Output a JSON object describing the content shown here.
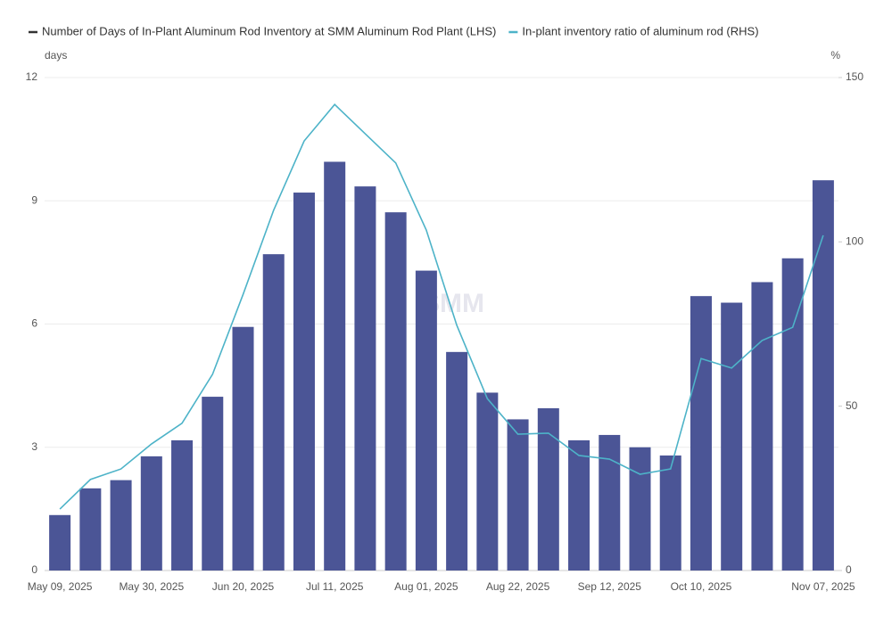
{
  "chart_data": {
    "type": "bar_line",
    "watermark": "SMM",
    "y_unit": "days",
    "y2_unit": "%",
    "categories": [
      "May 09, 2025",
      null,
      null,
      "May 30, 2025",
      null,
      null,
      "Jun 20, 2025",
      null,
      null,
      "Jul 11, 2025",
      null,
      null,
      "Aug 01, 2025",
      null,
      null,
      "Aug 22, 2025",
      null,
      null,
      "Sep 12, 2025",
      null,
      null,
      "Oct 10, 2025",
      null,
      null,
      null,
      "Nov 07, 2025"
    ],
    "series": [
      {
        "name": "Number of Days of In-Plant Aluminum Rod Inventory at SMM Aluminum Rod Plant (LHS)",
        "type": "bar",
        "color": "#4b5596",
        "values": [
          1.35,
          2.0,
          2.2,
          2.78,
          3.17,
          4.23,
          5.93,
          7.7,
          9.2,
          9.95,
          9.35,
          8.72,
          7.3,
          5.32,
          4.33,
          3.68,
          3.95,
          3.17,
          3.3,
          3.0,
          2.8,
          6.68,
          6.52,
          7.02,
          7.6,
          9.5
        ]
      },
      {
        "name": "In-plant inventory ratio of aluminum rod (RHS)",
        "type": "line",
        "axis": "y2",
        "color": "#4db3c8",
        "values": [
          18.7,
          27.7,
          30.9,
          38.5,
          44.8,
          59.7,
          84,
          109.6,
          130.7,
          141.8,
          132.9,
          124,
          103.6,
          74.6,
          52.3,
          41.5,
          41.8,
          35,
          33.9,
          29.3,
          30.9,
          64.5,
          61.6,
          70,
          74,
          102
        ]
      }
    ],
    "ylim": [
      0,
      12
    ],
    "yticks": [
      0,
      3,
      6,
      9,
      12
    ],
    "y2lim": [
      0,
      150
    ],
    "y2ticks": [
      0,
      50,
      100,
      150
    ],
    "grid": true
  }
}
